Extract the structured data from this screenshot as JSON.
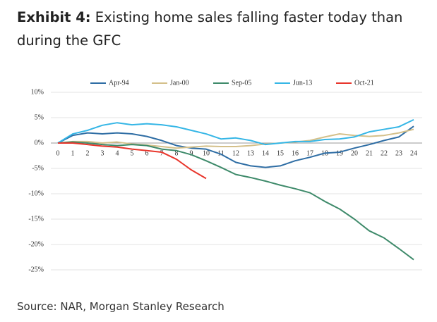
{
  "chart_data": {
    "type": "line",
    "title_label": "Exhibit 4:",
    "title": "Existing home sales falling faster today than during the GFC",
    "source": "Source: NAR, Morgan Stanley Research",
    "x": [
      0,
      1,
      2,
      3,
      4,
      5,
      6,
      7,
      8,
      9,
      10,
      11,
      12,
      13,
      14,
      15,
      16,
      17,
      18,
      19,
      20,
      21,
      22,
      23,
      24
    ],
    "xlim": [
      0,
      24
    ],
    "xticks": [
      0,
      1,
      2,
      3,
      4,
      5,
      6,
      7,
      8,
      9,
      10,
      11,
      12,
      13,
      14,
      15,
      16,
      17,
      18,
      19,
      20,
      21,
      22,
      23,
      24
    ],
    "ylim": [
      -25,
      10
    ],
    "yticks": [
      {
        "value": 10,
        "label": "10%"
      },
      {
        "value": 5,
        "label": "5%"
      },
      {
        "value": 0,
        "label": "0%"
      },
      {
        "value": -5,
        "label": "-5%"
      },
      {
        "value": -10,
        "label": "-10%"
      },
      {
        "value": -15,
        "label": "-15%"
      },
      {
        "value": -20,
        "label": "-20%"
      },
      {
        "value": -25,
        "label": "-25%"
      }
    ],
    "grid": true,
    "legend": "top",
    "series": [
      {
        "name": "Apr-94",
        "color": "#2e6da4",
        "values": [
          0,
          1.5,
          2,
          1.8,
          2,
          1.8,
          1.3,
          0.5,
          -0.5,
          -1,
          -1.2,
          -2.2,
          -3.8,
          -4.5,
          -4.8,
          -4.5,
          -3.5,
          -2.8,
          -2,
          -1.8,
          -1,
          -0.3,
          0.5,
          1.2,
          3.3
        ]
      },
      {
        "name": "Jan-00",
        "color": "#d4c08a",
        "values": [
          0,
          0.3,
          0.3,
          0,
          0.2,
          -0.2,
          -0.4,
          -0.7,
          -1,
          -0.8,
          -0.6,
          -0.7,
          -0.7,
          -0.5,
          -0.2,
          0,
          0.2,
          0.5,
          1.2,
          1.8,
          1.5,
          1.3,
          1.5,
          2,
          2.7
        ]
      },
      {
        "name": "Sep-05",
        "color": "#3e8a6a",
        "values": [
          0,
          0.2,
          0,
          -0.3,
          -0.5,
          -0.3,
          -0.5,
          -1.2,
          -1.5,
          -2.3,
          -3.5,
          -4.8,
          -6.2,
          -6.8,
          -7.5,
          -8.3,
          -9,
          -9.8,
          -11.5,
          -13,
          -15,
          -17.3,
          -18.7,
          -20.8,
          -23
        ]
      },
      {
        "name": "Jun-13",
        "color": "#35b6e6",
        "values": [
          0,
          1.8,
          2.5,
          3.5,
          4,
          3.6,
          3.8,
          3.6,
          3.2,
          2.5,
          1.8,
          0.8,
          1,
          0.5,
          -0.3,
          0,
          0.3,
          0.3,
          0.7,
          0.8,
          1.2,
          2.2,
          2.7,
          3.2,
          4.6
        ]
      },
      {
        "name": "Oct-21",
        "color": "#e8352b",
        "values": [
          0,
          0,
          -0.3,
          -0.6,
          -0.8,
          -1.2,
          -1.5,
          -1.8,
          -3.2,
          -5.3,
          -7,
          null,
          null,
          null,
          null,
          null,
          null,
          null,
          null,
          null,
          null,
          null,
          null,
          null,
          null
        ]
      }
    ]
  }
}
